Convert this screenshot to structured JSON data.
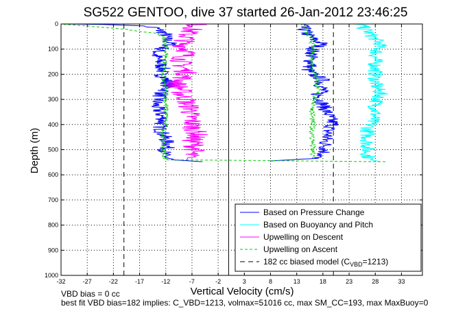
{
  "chart_data": {
    "type": "line",
    "title": "SG522 GENTOO, dive 37 started 26-Jan-2012 23:46:25",
    "xlabel": "Vertical Velocity (cm/s)",
    "ylabel": "Depth (m)",
    "xlim": [
      -32,
      37
    ],
    "ylim": [
      0,
      1000
    ],
    "y_reversed": true,
    "grid": true,
    "x_ticks": [
      -32,
      -27,
      -22,
      -17,
      -12,
      -7,
      -2,
      3,
      8,
      13,
      18,
      23,
      28,
      33
    ],
    "y_ticks": [
      0,
      100,
      200,
      300,
      400,
      500,
      600,
      700,
      800,
      900,
      1000
    ],
    "legend_position": "bottom-right",
    "series": [
      {
        "name": "Based on Pressure Change",
        "color": "#0000ff",
        "segments": [
          {
            "depth": [
              0,
              5,
              15,
              40,
              60,
              80,
              100,
              120,
              140,
              160,
              180,
              200,
              220,
              240,
              260,
              280,
              300,
              320,
              340,
              360,
              380,
              400,
              420,
              440,
              460,
              480,
              500,
              520,
              540,
              548
            ],
            "x": [
              -30,
              -18,
              -14,
              -12,
              -12,
              -11,
              -13,
              -14,
              -13.5,
              -13,
              -12.5,
              -13,
              -12,
              -11.5,
              -12,
              -13,
              -13.5,
              -14,
              -13.5,
              -13,
              -12.5,
              -13,
              -13,
              -12.5,
              -12,
              -11.5,
              -12,
              -12.5,
              -11,
              -5
            ]
          },
          {
            "depth": [
              0,
              10,
              40,
              60,
              80,
              100,
              120,
              140,
              160,
              180,
              200,
              220,
              240,
              260,
              280,
              300,
              320,
              340,
              360,
              380,
              400,
              420,
              440,
              460,
              480,
              500,
              520,
              535,
              545
            ],
            "x": [
              14,
              14,
              15,
              16,
              18,
              16,
              16,
              15.5,
              16,
              15,
              16,
              18,
              17.5,
              18,
              17,
              17.5,
              18,
              18.5,
              19,
              19.5,
              20,
              19,
              19,
              18.5,
              18.5,
              18.5,
              18,
              16,
              8
            ]
          }
        ]
      },
      {
        "name": "Based on Buoyancy and Pitch",
        "color": "#00ffff",
        "segments": [
          {
            "depth": [
              0,
              40,
              60,
              80,
              100,
              120,
              140,
              160,
              180,
              200,
              220,
              240,
              260,
              280,
              300,
              320,
              340,
              360,
              380,
              400,
              420,
              440,
              460,
              480,
              500,
              520,
              540,
              548
            ],
            "x": [
              25,
              27,
              28,
              29,
              28.5,
              28,
              28,
              28,
              28,
              28,
              28,
              28,
              28.5,
              29,
              28.5,
              28,
              28,
              28,
              27.5,
              27,
              26.5,
              26.5,
              26.5,
              26.5,
              26.5,
              26.5,
              27,
              29
            ]
          }
        ]
      },
      {
        "name": "Upwelling on Descent",
        "color": "#ff00ff",
        "segments": [
          {
            "depth": [
              0,
              20,
              40,
              60,
              80,
              100,
              120,
              140,
              160,
              180,
              200,
              220,
              240,
              260,
              280,
              300,
              320,
              340,
              360,
              380,
              400,
              420,
              440,
              460,
              480,
              500,
              520,
              540
            ],
            "x": [
              -6,
              -7,
              -8,
              -8,
              -9,
              -8,
              -8,
              -9,
              -9,
              -8.5,
              -8,
              -9,
              -10,
              -9,
              -9,
              -8,
              -8,
              -7,
              -7.5,
              -7,
              -7,
              -6.5,
              -6,
              -7,
              -6.5,
              -6.5,
              -7.5,
              -8
            ]
          }
        ]
      },
      {
        "name": "Upwelling on Ascent",
        "color": "#00cc00",
        "dash": true,
        "segments": [
          {
            "depth": [
              0,
              20,
              40,
              60,
              80,
              100,
              140,
              180,
              220,
              260,
              300,
              340,
              380,
              420,
              460,
              500,
              540,
              548
            ],
            "x": [
              -32,
              -20,
              -13,
              -12.5,
              -12,
              -12,
              -12,
              -12.5,
              -12.5,
              -12,
              -12,
              -12,
              -12,
              -12.5,
              -12.5,
              -12.5,
              -12,
              30
            ]
          },
          {
            "depth": [
              0,
              20,
              40,
              60,
              80,
              100,
              140,
              180,
              220,
              260,
              300,
              340,
              380,
              420,
              460,
              500,
              540
            ],
            "x": [
              14,
              15,
              15,
              16,
              16,
              16,
              16,
              16,
              17,
              17,
              16.5,
              16,
              16,
              16,
              16,
              16,
              16
            ]
          }
        ]
      },
      {
        "name": "182 cc biased model (C_VBD=1213)",
        "color": "#000000",
        "dash": true,
        "segments": [
          {
            "depth": [
              0,
              1000
            ],
            "x": [
              -20,
              -20
            ]
          },
          {
            "depth": [
              0,
              1000
            ],
            "x": [
              20,
              20
            ]
          }
        ]
      }
    ],
    "zero_line_x": 0,
    "legend": [
      "Based on Pressure Change",
      "Based on Buoyancy and Pitch",
      "Upwelling on Descent",
      "Upwelling on Ascent",
      "182 cc biased model (C"
    ],
    "legend_model_sub": "VBD",
    "legend_model_tail": "=1213)",
    "notes": [
      "VBD bias = 0 cc",
      "best fit VBD bias=182 implies: C_VBD=1213, volmax=51016 cc, max SM_CC=193, max MaxBuoy=0"
    ]
  }
}
